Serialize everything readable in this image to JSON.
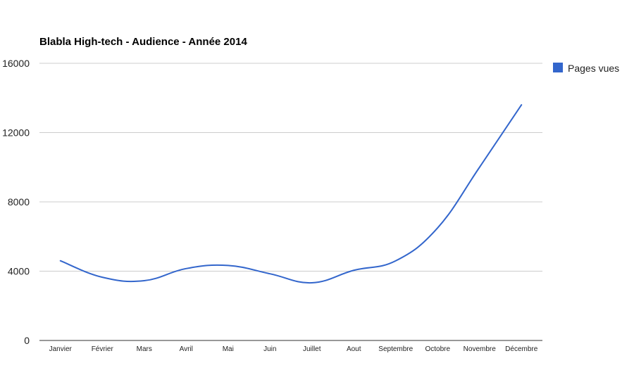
{
  "chart_data": {
    "type": "line",
    "title": "Blabla High-tech - Audience - Année 2014",
    "xlabel": "",
    "ylabel": "",
    "categories": [
      "Janvier",
      "Février",
      "Mars",
      "Avril",
      "Mai",
      "Juin",
      "Juillet",
      "Aout",
      "Septembre",
      "Octobre",
      "Novembre",
      "Décembre"
    ],
    "series": [
      {
        "name": "Pages vues",
        "color": "#3366cc",
        "values": [
          4600,
          3650,
          3450,
          4150,
          4330,
          3850,
          3330,
          4050,
          4600,
          6500,
          10000,
          13600
        ]
      }
    ],
    "ylim": [
      0,
      16000
    ],
    "yticks": [
      0,
      4000,
      8000,
      12000,
      16000
    ],
    "ytick_labels": [
      "0",
      "4000",
      "8000",
      "12000",
      "16000"
    ],
    "grid": true,
    "legend": {
      "position": "right"
    },
    "gridline_color": "#cccccc",
    "axis_color": "#333333"
  }
}
